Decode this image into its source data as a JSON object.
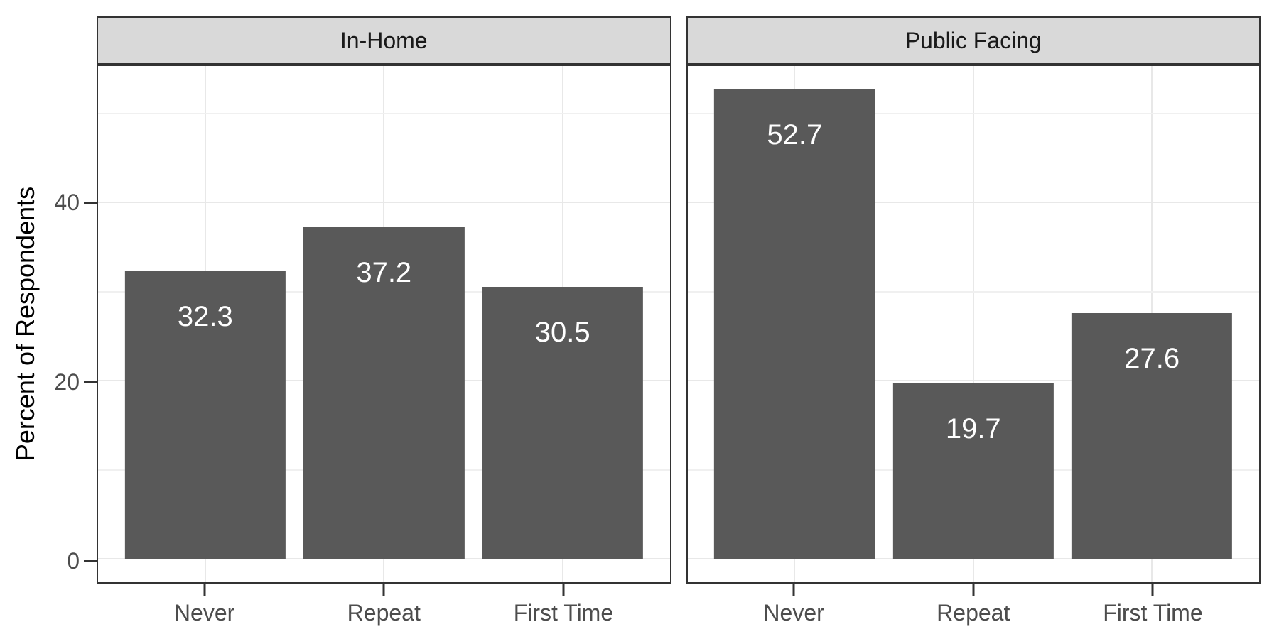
{
  "chart_data": {
    "type": "bar",
    "title": "",
    "ylabel": "Percent of Respondents",
    "xlabel": "",
    "categories": [
      "Never",
      "Repeat",
      "First Time"
    ],
    "facets": [
      {
        "label": "In-Home",
        "bars": [
          {
            "category": "Never",
            "value": 32.3,
            "label": "32.3"
          },
          {
            "category": "Repeat",
            "value": 37.2,
            "label": "37.2"
          },
          {
            "category": "First Time",
            "value": 30.5,
            "label": "30.5"
          }
        ]
      },
      {
        "label": "Public Facing",
        "bars": [
          {
            "category": "Never",
            "value": 52.7,
            "label": "52.7"
          },
          {
            "category": "Repeat",
            "value": 19.7,
            "label": "19.7"
          },
          {
            "category": "First Time",
            "value": 27.6,
            "label": "27.6"
          }
        ]
      }
    ],
    "y_major_ticks": [
      0,
      20,
      40
    ],
    "y_minor_ticks": [
      10,
      30,
      50
    ],
    "y_tick_labels": [
      "0",
      "20",
      "40"
    ],
    "ylim": [
      -2.64,
      55.34
    ],
    "grid": true,
    "legend_position": "none",
    "colors": {
      "bar_fill": "#595959",
      "bar_label_text": "#ffffff",
      "strip_fill": "#d9d9d9",
      "panel_border": "#333333",
      "grid_major": "#e8e8e8",
      "grid_minor": "#f0f0f0",
      "axis_text": "#4d4d4d",
      "axis_title": "#000000",
      "background": "#ffffff"
    }
  }
}
